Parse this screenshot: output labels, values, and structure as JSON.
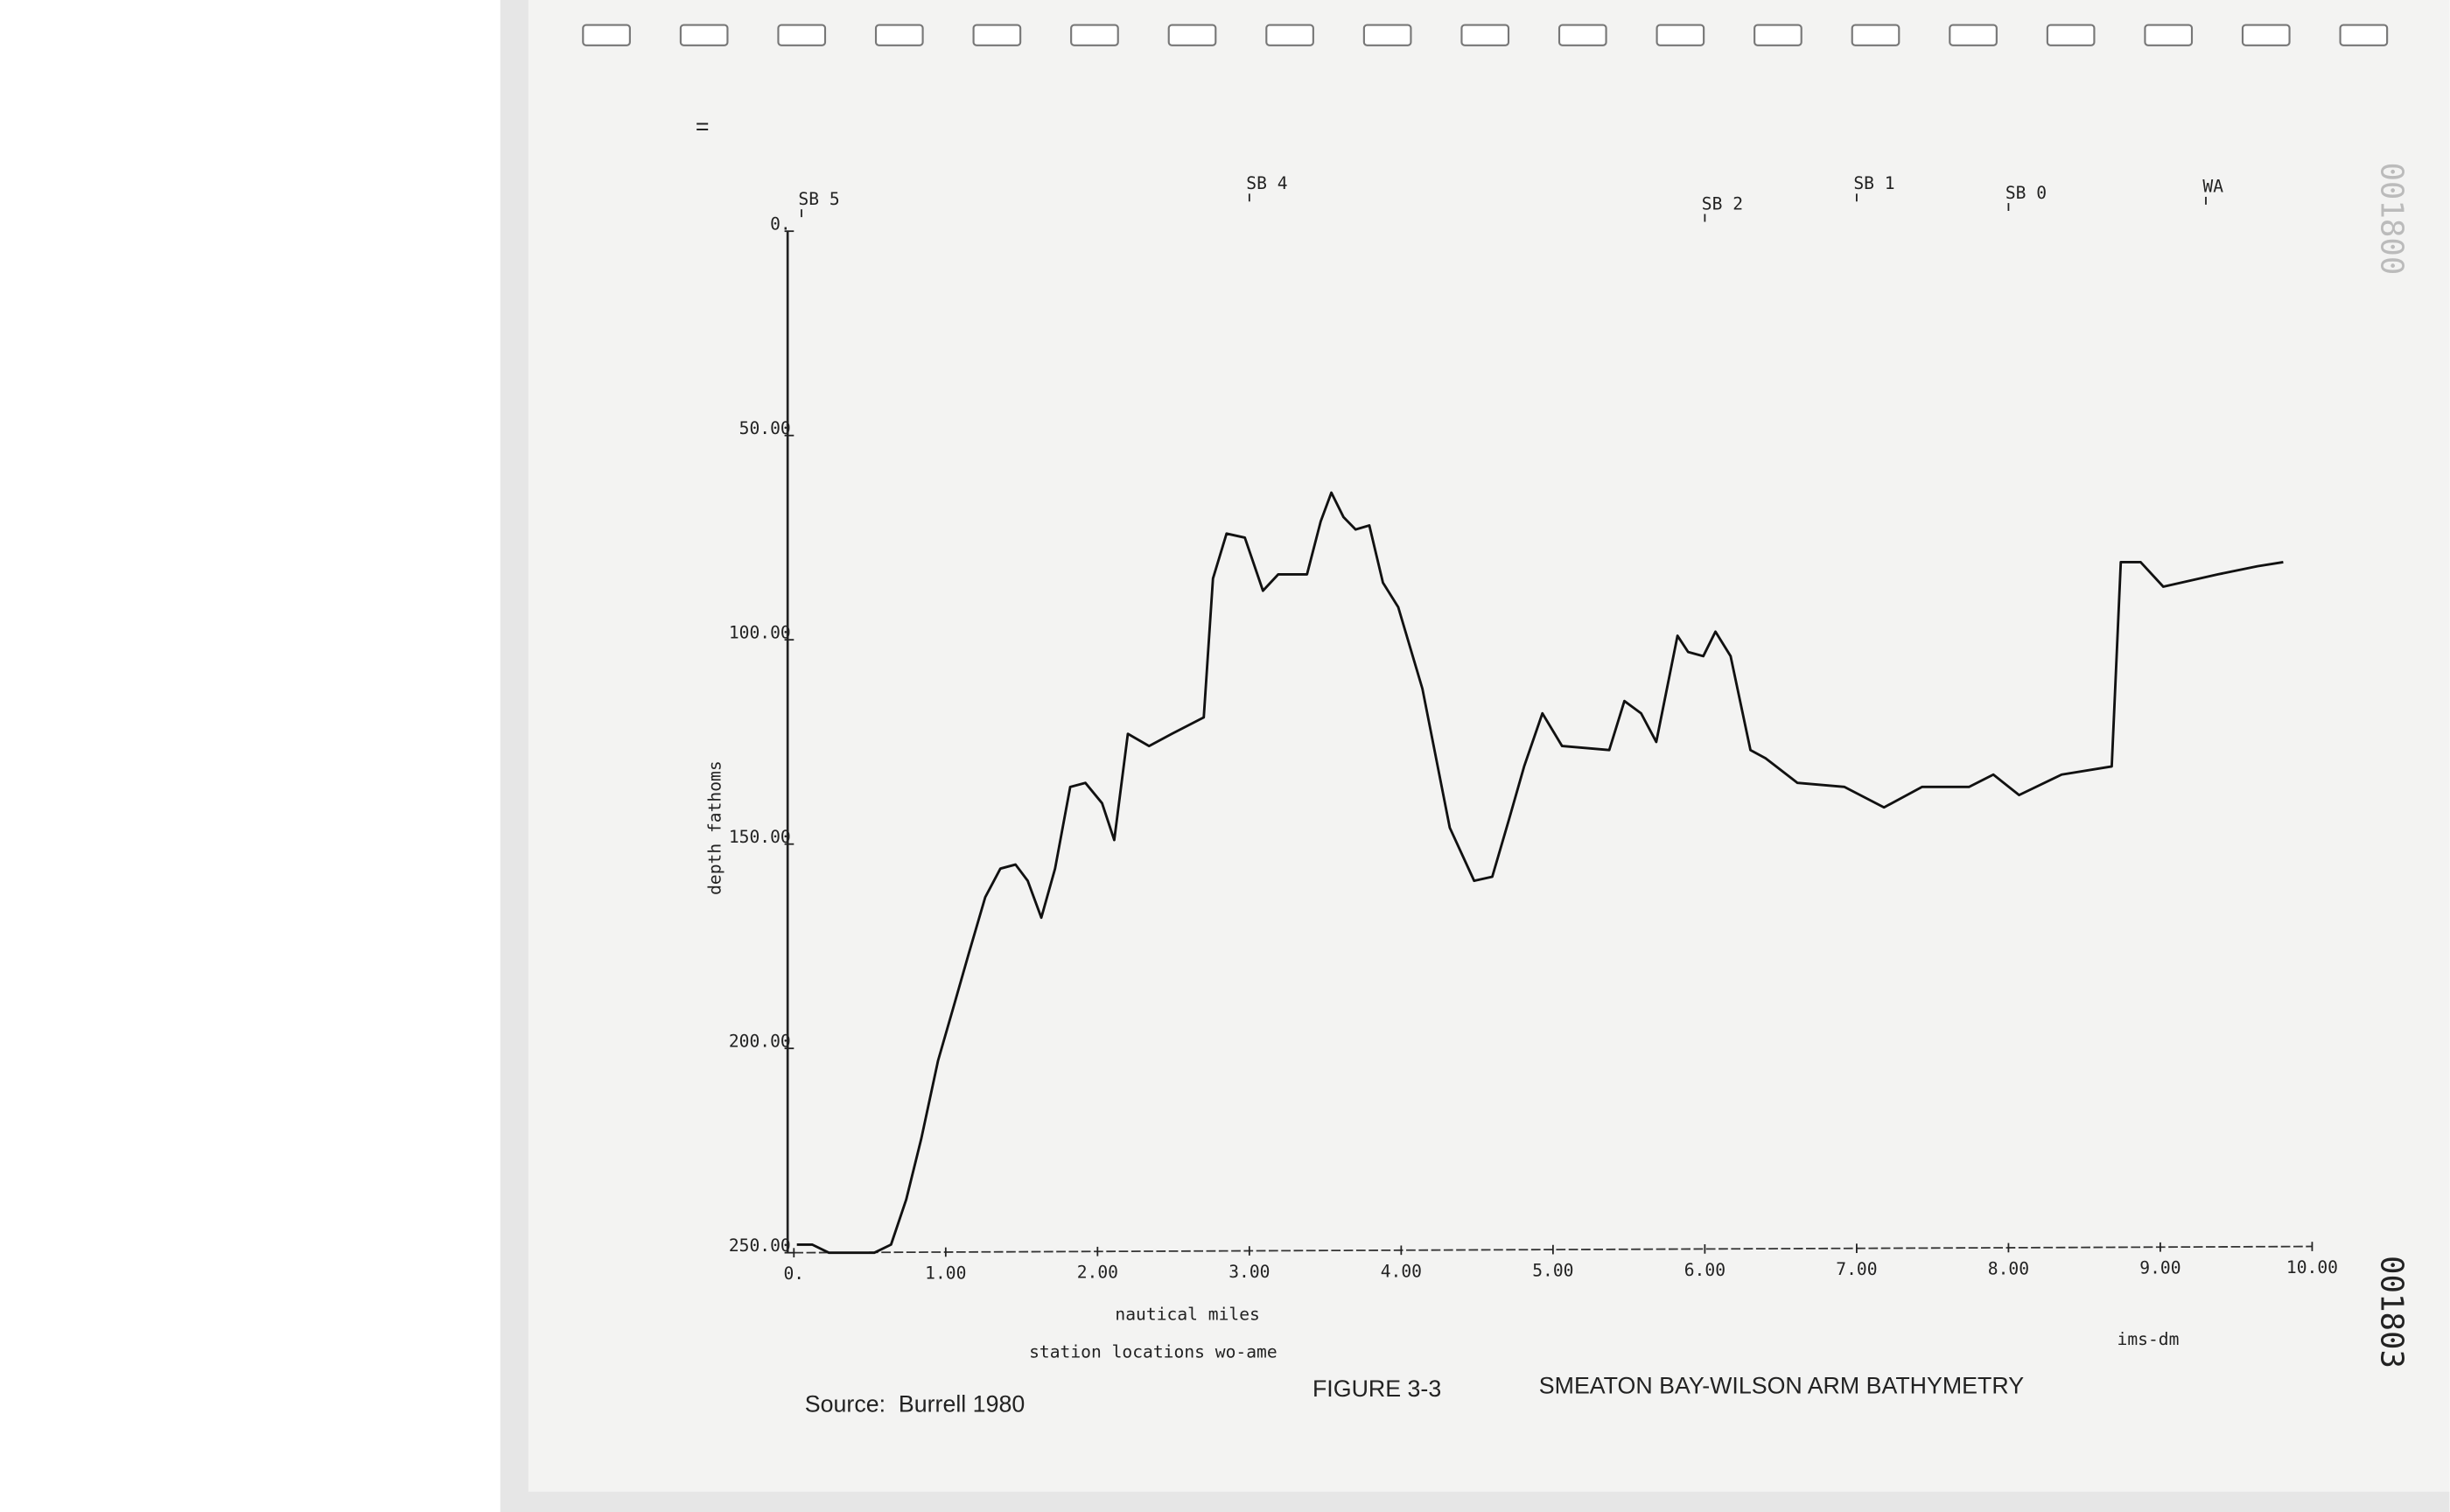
{
  "page": {
    "mark": "=",
    "stamp_bottom": "001803",
    "stamp_top": "001800"
  },
  "chart_data": {
    "type": "line",
    "title": "SMEATON BAY-WILSON ARM BATHYMETRY",
    "figure_label": "FIGURE 3-3",
    "source": "Source:  Burrell 1980",
    "x_label": "nautical miles",
    "y_label": "depth fathoms",
    "note_left": "station locations wo-ame",
    "note_right": "ims-dm",
    "color": "#111111",
    "xlim": [
      0,
      10
    ],
    "ylim": [
      0,
      250
    ],
    "y_inverted": true,
    "xticks": [
      {
        "value": 0,
        "label": "0."
      },
      {
        "value": 1,
        "label": "1.00"
      },
      {
        "value": 2,
        "label": "2.00"
      },
      {
        "value": 3,
        "label": "3.00"
      },
      {
        "value": 4,
        "label": "4.00"
      },
      {
        "value": 5,
        "label": "5.00"
      },
      {
        "value": 6,
        "label": "6.00"
      },
      {
        "value": 7,
        "label": "7.00"
      },
      {
        "value": 8,
        "label": "8.00"
      },
      {
        "value": 9,
        "label": "9.00"
      },
      {
        "value": 10,
        "label": "10.00"
      }
    ],
    "yticks": [
      {
        "value": 0,
        "label": "0."
      },
      {
        "value": 50,
        "label": "50.00"
      },
      {
        "value": 100,
        "label": "100.00"
      },
      {
        "value": 150,
        "label": "150.00"
      },
      {
        "value": 200,
        "label": "200.00"
      },
      {
        "value": 250,
        "label": "250.00"
      }
    ],
    "stations": [
      {
        "label": "SB 5",
        "x": 0.05
      },
      {
        "label": "SB 4",
        "x": 3.0
      },
      {
        "label": "SB 2",
        "x": 6.0
      },
      {
        "label": "SB 1",
        "x": 7.0
      },
      {
        "label": "SB 0",
        "x": 8.0
      },
      {
        "label": "WA",
        "x": 9.3
      }
    ],
    "x": [
      0.02,
      0.12,
      0.23,
      0.53,
      0.64,
      0.74,
      0.84,
      0.95,
      1.05,
      1.15,
      1.26,
      1.36,
      1.46,
      1.54,
      1.63,
      1.72,
      1.82,
      1.92,
      2.03,
      2.11,
      2.2,
      2.34,
      2.49,
      2.7,
      2.76,
      2.85,
      2.97,
      3.09,
      3.19,
      3.38,
      3.47,
      3.54,
      3.62,
      3.7,
      3.79,
      3.88,
      3.98,
      4.14,
      4.32,
      4.48,
      4.6,
      4.71,
      4.81,
      4.93,
      5.06,
      5.37,
      5.47,
      5.58,
      5.68,
      5.82,
      5.89,
      5.99,
      6.07,
      6.17,
      6.3,
      6.4,
      6.61,
      6.92,
      7.18,
      7.43,
      7.74,
      7.9,
      8.07,
      8.35,
      8.68,
      8.74,
      8.87,
      9.02,
      9.38,
      9.64,
      9.81
    ],
    "values": [
      248,
      248,
      250,
      250,
      248,
      237,
      222,
      203,
      190,
      177,
      163,
      156,
      155,
      159,
      168,
      156,
      136,
      135,
      140,
      149,
      123,
      126,
      123,
      119,
      85,
      74,
      75,
      88,
      84,
      84,
      71,
      64,
      70,
      73,
      72,
      86,
      92,
      112,
      146,
      159,
      158,
      144,
      131,
      118,
      126,
      127,
      115,
      118,
      125,
      99,
      103,
      104,
      98,
      104,
      127,
      129,
      135,
      136,
      141,
      136,
      136,
      133,
      138,
      133,
      131,
      81,
      81,
      87,
      84,
      82,
      81
    ]
  }
}
